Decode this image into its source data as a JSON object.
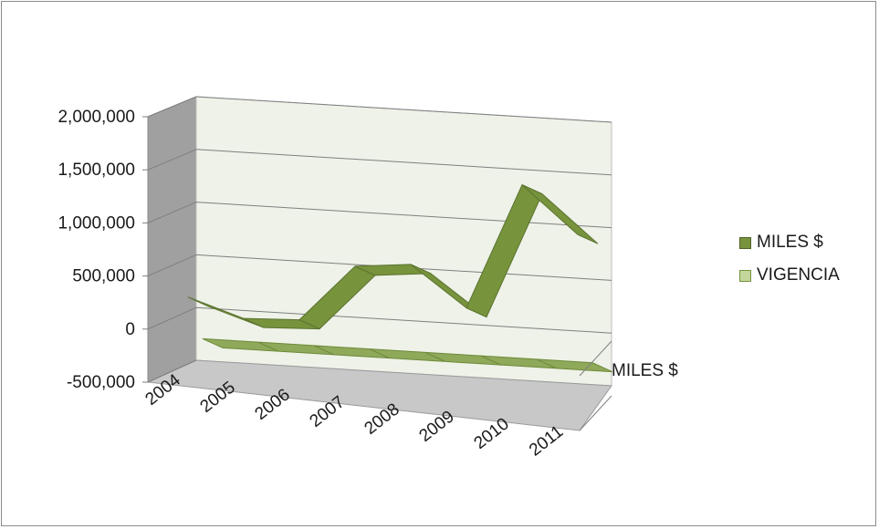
{
  "chart_data": {
    "type": "line",
    "style": "3d",
    "categories": [
      "2004",
      "2005",
      "2006",
      "2007",
      "2008",
      "2009",
      "2010",
      "2011"
    ],
    "series": [
      {
        "name": "MILES $",
        "color": "#77933C",
        "values": [
          250000,
          80000,
          100000,
          640000,
          690000,
          310000,
          1510000,
          1070000
        ]
      },
      {
        "name": "VIGENCIA",
        "color": "#C3D69B",
        "values": [
          2004,
          2005,
          2006,
          2007,
          2008,
          2009,
          2010,
          2011
        ]
      }
    ],
    "y_ticks": [
      "2,000,000",
      "1,500,000",
      "1,000,000",
      "500,000",
      "0",
      "-500,000"
    ],
    "ylim": [
      -500000,
      2000000
    ],
    "depth_label": "MILES $",
    "legend_position": "right",
    "grid": true
  }
}
